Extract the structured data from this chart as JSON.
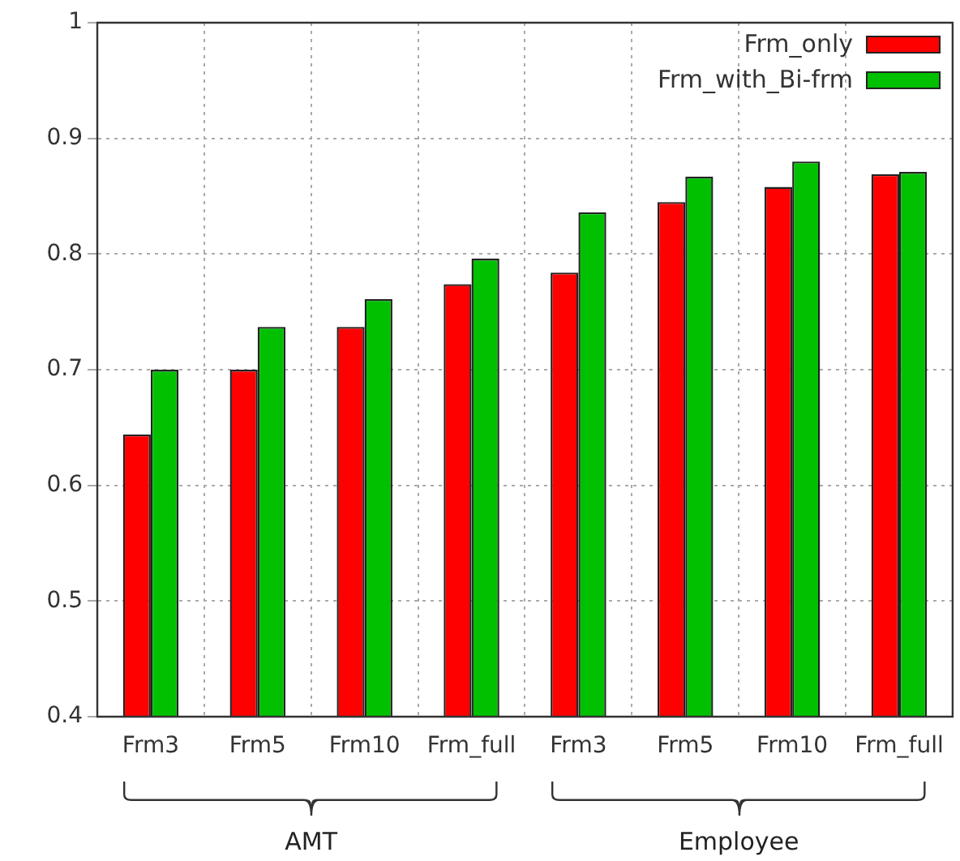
{
  "chart_data": {
    "type": "bar",
    "categories": [
      "Frm3",
      "Frm5",
      "Frm10",
      "Frm_full",
      "Frm3",
      "Frm5",
      "Frm10",
      "Frm_full"
    ],
    "series": [
      {
        "name": "Frm_only",
        "color": "#ff0000",
        "values": [
          0.644,
          0.7,
          0.737,
          0.774,
          0.784,
          0.845,
          0.858,
          0.869
        ]
      },
      {
        "name": "Frm_with_Bi-frm",
        "color": "#00c000",
        "values": [
          0.7,
          0.737,
          0.761,
          0.796,
          0.836,
          0.867,
          0.88,
          0.871
        ]
      }
    ],
    "ylim": [
      0.4,
      1
    ],
    "yticks": [
      0.4,
      0.5,
      0.6,
      0.7,
      0.8,
      0.9,
      1
    ],
    "grid": true,
    "legend": "top right",
    "annotations": [
      "AMT",
      "Employee"
    ]
  }
}
